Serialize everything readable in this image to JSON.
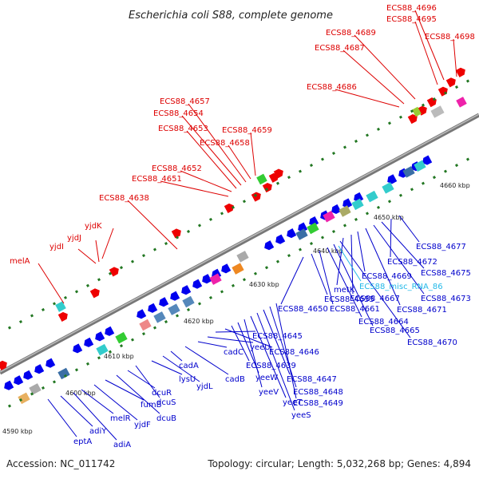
{
  "title": "Escherichia coli S88, complete genome",
  "footer": {
    "accession": "Accession: NC_011742",
    "summary": "Topology: circular; Length: 5,032,268 bp; Genes: 4,894"
  },
  "colors": {
    "forward_gene": "#ee0000",
    "reverse_gene": "#0000ee",
    "forward_label": "#dd0000",
    "reverse_label": "#0000cc",
    "misc_rna": "#22b8e8",
    "backbone": "#888888"
  },
  "axis_ticks": [
    "4590 kbp",
    "4600 kbp",
    "4610 kbp",
    "4620 kbp",
    "4630 kbp",
    "4640 kbp",
    "4650 kbp",
    "4660 kbp"
  ],
  "forward_labels": [
    "melA",
    "yjdI",
    "yjdJ",
    "yjdK",
    "ECS88_4638",
    "ECS88_4651",
    "ECS88_4652",
    "ECS88_4653",
    "ECS88_4654",
    "ECS88_4657",
    "ECS88_4658",
    "ECS88_4659",
    "ECS88_4686",
    "ECS88_4687",
    "ECS88_4689",
    "ECS88_4695",
    "ECS88_4696",
    "ECS88_4698"
  ],
  "reverse_labels": [
    "eptA",
    "adiY",
    "adiA",
    "melR",
    "yjdF",
    "fumB",
    "dcuB",
    "dcuR",
    "dcuS",
    "lysU",
    "yjdL",
    "cadA",
    "cadB",
    "cadC",
    "yeeU",
    "ECS88_4645",
    "ECS88_4646",
    "ECS88_4639",
    "yeeW",
    "yeeV",
    "yeeT",
    "yeeS",
    "ECS88_4647",
    "ECS88_4648",
    "ECS88_4649",
    "ECS88_4650",
    "ECS88_4655",
    "ECS88_4661",
    "ECS88_4664",
    "ECS88_4665",
    "ECS88_4670",
    "metK",
    "ECS88_4667",
    "ECS88_4669",
    "ECS88_4671",
    "ECS88_4673",
    "ECS88_4675",
    "ECS88_4672",
    "ECS88_4677"
  ],
  "misc_rna_label": "ECS88_misc_RNA_86"
}
